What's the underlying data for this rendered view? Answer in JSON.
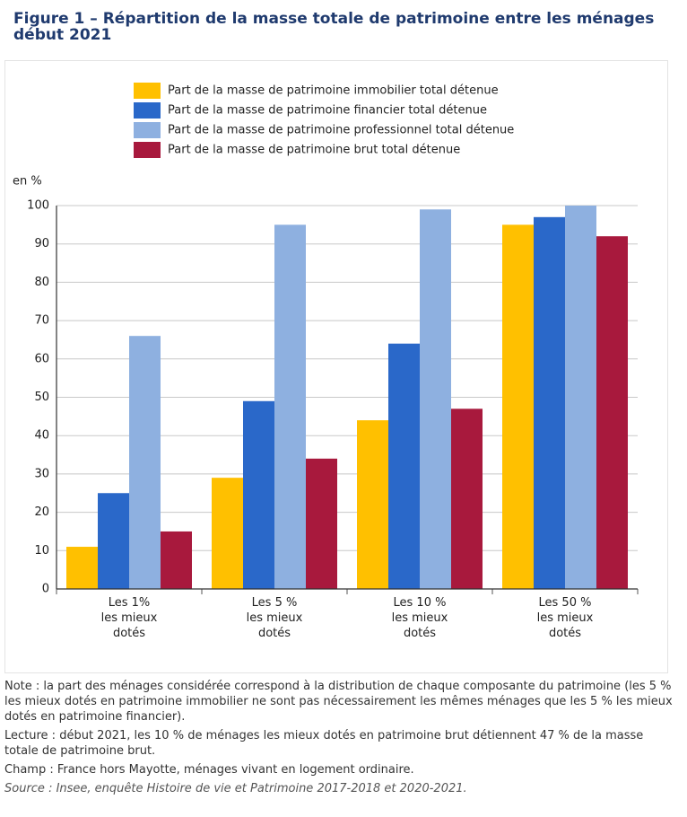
{
  "chart_data": {
    "type": "bar",
    "title": "Figure 1 – Répartition de la masse totale de patrimoine entre les ménages début 2021",
    "ylabel": "en %",
    "categories": [
      "Les 1%\nles mieux\ndotés",
      "Les 5 %\nles mieux\ndotés",
      "Les 10 %\nles mieux\ndotés",
      "Les 50 %\nles mieux\ndotés"
    ],
    "series": [
      {
        "name": "Part de la masse de patrimoine immobilier total détenue",
        "color": "#ffc000",
        "values": [
          11,
          29,
          44,
          95
        ]
      },
      {
        "name": "Part de la masse de patrimoine financier total détenue",
        "color": "#2a68c9",
        "values": [
          25,
          49,
          64,
          97
        ]
      },
      {
        "name": "Part de la masse de patrimoine professionnel total détenue",
        "color": "#8eb0e0",
        "values": [
          66,
          95,
          99,
          100
        ]
      },
      {
        "name": "Part de la masse de patrimoine brut total détenue",
        "color": "#a8193d",
        "values": [
          15,
          34,
          47,
          92
        ]
      }
    ],
    "ylim": [
      0,
      100
    ],
    "yticks": [
      0,
      10,
      20,
      30,
      40,
      50,
      60,
      70,
      80,
      90,
      100
    ],
    "grid": true
  },
  "notes": {
    "note": "Note : la part des ménages considérée correspond à la distribution de chaque composante du patrimoine (les 5 % les mieux dotés en patrimoine immobilier ne sont pas nécessairement les mêmes ménages que les 5 % les mieux dotés en patrimoine financier).",
    "lecture": "Lecture : début 2021, les 10 % de ménages les mieux dotés en patrimoine brut détiennent 47 % de la masse totale de patrimoine brut.",
    "champ": "Champ : France hors Mayotte, ménages vivant en logement ordinaire.",
    "source": "Source : Insee, enquête Histoire de vie et Patrimoine 2017-2018 et 2020-2021."
  }
}
